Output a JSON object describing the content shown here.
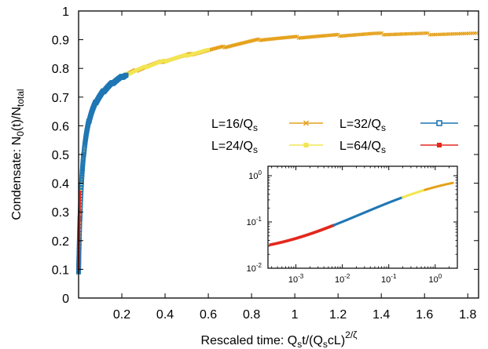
{
  "chart_data": [
    {
      "type": "scatter",
      "xlabel": {
        "base": "Rescaled time: Q",
        "s1": "s",
        "mid": "t/(Q",
        "s2": "s",
        "tail": "cL)",
        "sup": "2/ζ"
      },
      "ylabel": {
        "base": "Condensate: N",
        "s1": "0",
        "mid": "(t)/N",
        "s2": "total"
      },
      "xlim": [
        0,
        1.85
      ],
      "ylim": [
        0,
        1
      ],
      "x_ticks": [
        "0.2",
        "0.4",
        "0.6",
        "0.8",
        "1",
        "1.2",
        "1.4",
        "1.6",
        "1.8"
      ],
      "y_ticks": [
        "0",
        "0.1",
        "0.2",
        "0.3",
        "0.4",
        "0.5",
        "0.6",
        "0.7",
        "0.8",
        "0.9",
        "1"
      ],
      "legend_position": "center-right",
      "series": [
        {
          "name": "L=16/Q",
          "sub": "s",
          "color": "#e5a11b",
          "marker": "x",
          "x_range": [
            0.0,
            1.84
          ]
        },
        {
          "name": "L=32/Q",
          "sub": "s",
          "color": "#1f77b4",
          "marker": "open-square",
          "x_range": [
            0.0,
            0.22
          ]
        },
        {
          "name": "L=24/Q",
          "sub": "s",
          "color": "#f2e552",
          "marker": "filled-square",
          "x_range": [
            0.0,
            0.6
          ]
        },
        {
          "name": "L=64/Q",
          "sub": "s",
          "color": "#e3281e",
          "marker": "filled-square",
          "x_range": [
            0.0,
            0.006
          ]
        }
      ]
    },
    {
      "type": "scatter",
      "xscale": "log",
      "yscale": "log",
      "xlim": [
        0.00025,
        3
      ],
      "ylim": [
        0.01,
        1.6
      ],
      "x_ticks": [
        {
          "base": "10",
          "exp": "-3"
        },
        {
          "base": "10",
          "exp": "-2"
        },
        {
          "base": "10",
          "exp": "-1"
        },
        {
          "base": "10",
          "exp": "0"
        }
      ],
      "y_ticks": [
        {
          "base": "10",
          "exp": "-2"
        },
        {
          "base": "10",
          "exp": "-1"
        },
        {
          "base": "10",
          "exp": "0"
        }
      ]
    }
  ]
}
